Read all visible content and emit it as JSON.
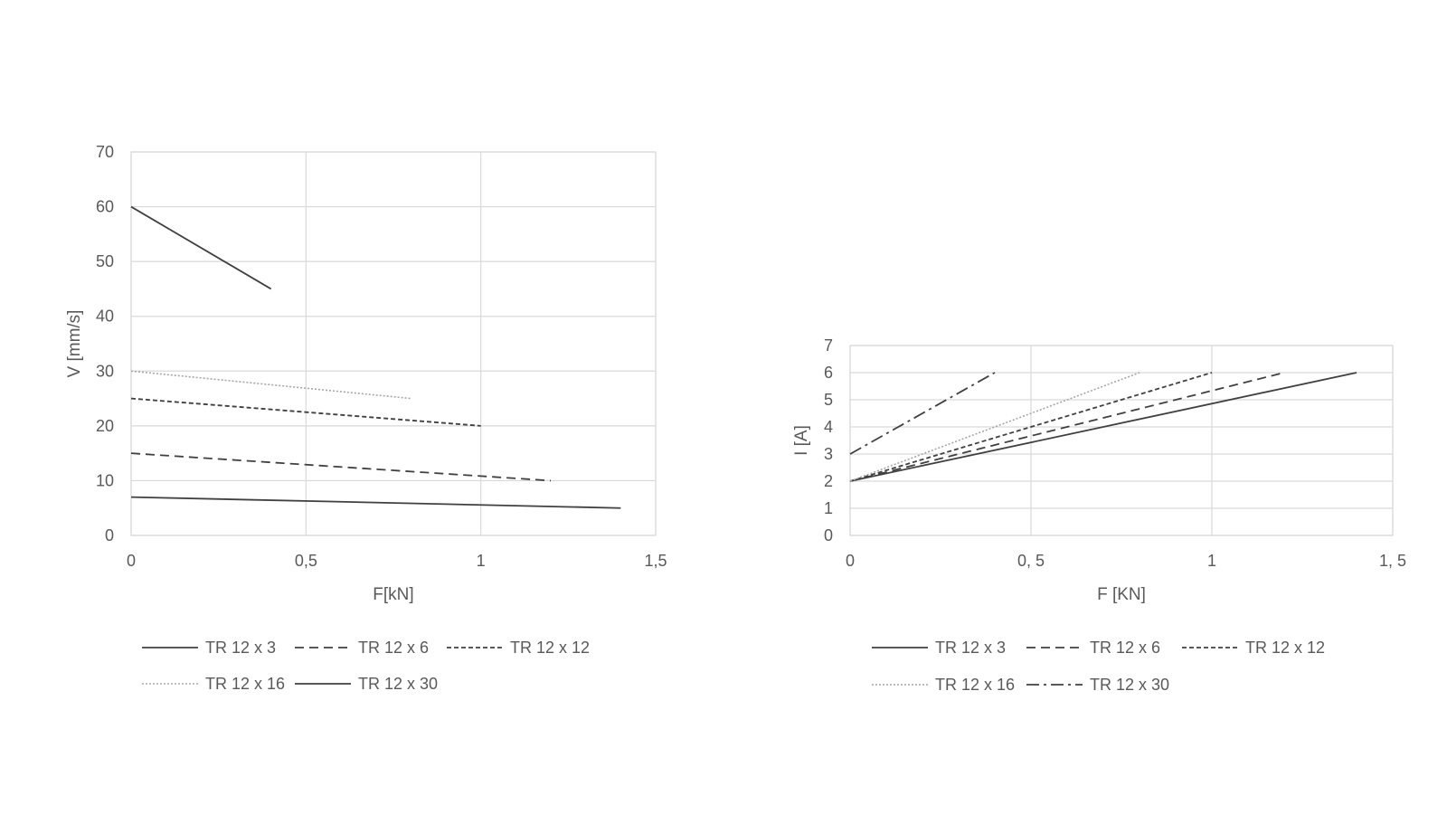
{
  "chart_data": [
    {
      "type": "line",
      "title": "",
      "xlabel": "F[kN]",
      "ylabel": "V [mm/s]",
      "xlim": [
        0,
        1.5
      ],
      "ylim": [
        0,
        70
      ],
      "x_ticks": [
        "0",
        "0,5",
        "1",
        "1,5"
      ],
      "y_ticks": [
        "0",
        "10",
        "20",
        "30",
        "40",
        "50",
        "60",
        "70"
      ],
      "grid": true,
      "legend_position": "bottom",
      "series": [
        {
          "name": "TR 12 x 3",
          "style": "solid",
          "x": [
            0,
            1.4
          ],
          "y": [
            7,
            5
          ]
        },
        {
          "name": "TR 12 x 6",
          "style": "dashed",
          "x": [
            0,
            1.2
          ],
          "y": [
            15,
            10
          ]
        },
        {
          "name": "TR 12 x 12",
          "style": "dense-dashed",
          "x": [
            0,
            1
          ],
          "y": [
            25,
            20
          ]
        },
        {
          "name": "TR 12 x 16",
          "style": "dotted",
          "x": [
            0,
            0.8
          ],
          "y": [
            30,
            25
          ]
        },
        {
          "name": "TR 12 x 30",
          "style": "solid",
          "x": [
            0,
            0.4
          ],
          "y": [
            60,
            45
          ]
        }
      ]
    },
    {
      "type": "line",
      "title": "",
      "xlabel": "F [KN]",
      "ylabel": "I [A]",
      "xlim": [
        0,
        1.5
      ],
      "ylim": [
        0,
        7
      ],
      "x_ticks": [
        "0",
        "0, 5",
        "1",
        "1, 5"
      ],
      "y_ticks": [
        "0",
        "1",
        "2",
        "3",
        "4",
        "5",
        "6",
        "7"
      ],
      "grid": true,
      "legend_position": "bottom",
      "series": [
        {
          "name": "TR 12 x 3",
          "style": "solid",
          "x": [
            0,
            1.4
          ],
          "y": [
            2,
            6
          ]
        },
        {
          "name": "TR 12 x 6",
          "style": "dashed",
          "x": [
            0,
            1.2
          ],
          "y": [
            2,
            6
          ]
        },
        {
          "name": "TR 12 x 12",
          "style": "dense-dashed",
          "x": [
            0,
            1
          ],
          "y": [
            2,
            6
          ]
        },
        {
          "name": "TR 12 x 16",
          "style": "dotted",
          "x": [
            0,
            0.8
          ],
          "y": [
            2,
            6
          ]
        },
        {
          "name": "TR 12 x 30",
          "style": "dash-dot",
          "x": [
            0,
            0.4
          ],
          "y": [
            3,
            6
          ]
        }
      ]
    }
  ]
}
